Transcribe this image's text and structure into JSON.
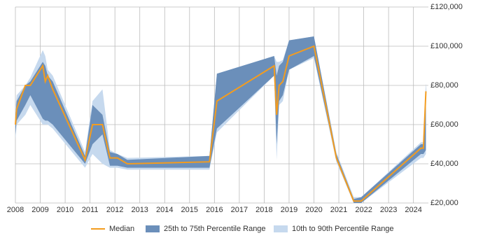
{
  "chart_data": {
    "type": "band-line",
    "x": [
      2008.0,
      2008.05,
      2008.4,
      2008.6,
      2009.1,
      2009.2,
      2009.3,
      2009.5,
      2010.8,
      2011.1,
      2011.5,
      2011.8,
      2012.1,
      2012.5,
      2015.8,
      2016.1,
      2018.4,
      2018.5,
      2018.6,
      2018.75,
      2019.0,
      2020.0,
      2020.9,
      2021.6,
      2021.9,
      2024.3,
      2024.4,
      2024.5
    ],
    "series": [
      {
        "name": "Median",
        "color": "#f39c1f",
        "values": [
          60000,
          68000,
          80000,
          80000,
          90000,
          82000,
          85000,
          78000,
          42000,
          60000,
          60000,
          43000,
          43000,
          40000,
          41000,
          72000,
          90000,
          65000,
          80000,
          82000,
          95000,
          100000,
          43000,
          21000,
          21000,
          48000,
          48000,
          77000
        ]
      }
    ],
    "bands": [
      {
        "name": "10th to 90th Percentile Range",
        "color": "#c6d9ee",
        "low": [
          52000,
          60000,
          65000,
          70000,
          60000,
          60000,
          60000,
          58000,
          38000,
          45000,
          40000,
          38000,
          38000,
          37000,
          37000,
          56000,
          85000,
          42000,
          70000,
          72000,
          88000,
          94000,
          41000,
          20000,
          20000,
          43000,
          43000,
          45000
        ],
        "high": [
          68000,
          75000,
          80000,
          84000,
          98000,
          95000,
          88000,
          85000,
          46000,
          72000,
          78000,
          47000,
          45000,
          43000,
          44000,
          86000,
          95000,
          92000,
          92000,
          93000,
          103000,
          105000,
          46000,
          23000,
          23000,
          51000,
          51000,
          81000
        ]
      },
      {
        "name": "25th to 75th Percentile Range",
        "color": "#6b8fba",
        "low": [
          55000,
          62000,
          70000,
          75000,
          63000,
          62000,
          62000,
          60000,
          40000,
          50000,
          55000,
          39000,
          39000,
          38000,
          38000,
          58000,
          85000,
          50000,
          72000,
          75000,
          88000,
          95000,
          42000,
          20000,
          20000,
          45000,
          45000,
          47000
        ],
        "high": [
          65000,
          72000,
          80000,
          82000,
          92000,
          90000,
          85000,
          82000,
          44000,
          70000,
          65000,
          46000,
          45000,
          42000,
          44000,
          86000,
          95000,
          85000,
          90000,
          92000,
          103000,
          105000,
          45000,
          22000,
          23000,
          50000,
          50000,
          81000
        ]
      }
    ],
    "xlim": [
      2008,
      2024.6
    ],
    "xticks": [
      2008,
      2009,
      2010,
      2011,
      2012,
      2013,
      2014,
      2015,
      2016,
      2017,
      2018,
      2019,
      2020,
      2021,
      2022,
      2023,
      2024
    ],
    "ylim": [
      20000,
      120000
    ],
    "yticks": [
      {
        "value": 20000,
        "label": "£20,000"
      },
      {
        "value": 40000,
        "label": "£40,000"
      },
      {
        "value": 60000,
        "label": "£60,000"
      },
      {
        "value": 80000,
        "label": "£80,000"
      },
      {
        "value": 100000,
        "label": "£100,000"
      },
      {
        "value": 120000,
        "label": "£120,000"
      }
    ],
    "grid": true
  }
}
